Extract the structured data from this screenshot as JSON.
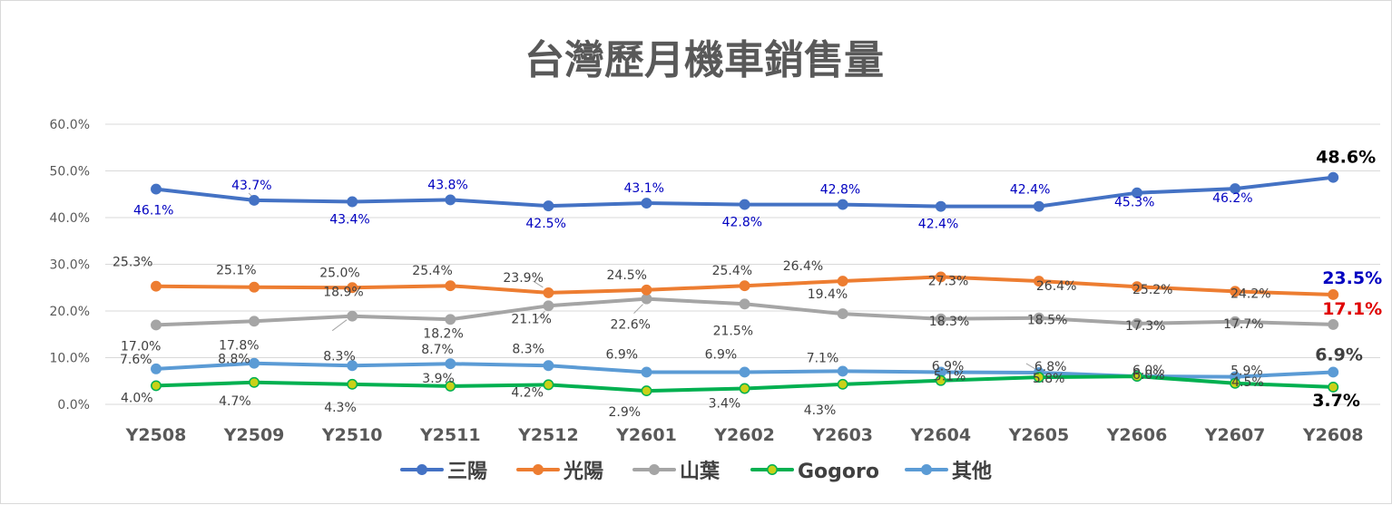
{
  "chart_data": {
    "type": "line",
    "title": "台灣歷月機車銷售量",
    "categories": [
      "Y2508",
      "Y2509",
      "Y2510",
      "Y2511",
      "Y2512",
      "Y2601",
      "Y2602",
      "Y2603",
      "Y2604",
      "Y2605",
      "Y2606",
      "Y2607",
      "Y2608"
    ],
    "ylim": [
      0,
      60
    ],
    "y_ticks": [
      "0.0%",
      "10.0%",
      "20.0%",
      "30.0%",
      "40.0%",
      "50.0%",
      "60.0%"
    ],
    "grid": true,
    "legend_position": "bottom",
    "series": [
      {
        "name": "三陽",
        "color": "#4472c4",
        "values": [
          46.1,
          43.7,
          43.4,
          43.8,
          42.5,
          43.1,
          42.8,
          42.8,
          42.4,
          42.4,
          45.3,
          46.2,
          48.6
        ],
        "labels": [
          "46.1%",
          "43.7%",
          "43.4%",
          "43.8%",
          "42.5%",
          "43.1%",
          "42.8%",
          "42.8%",
          "42.4%",
          "42.4%",
          "45.3%",
          "46.2%",
          "48.6%"
        ],
        "label_color": "#0000c0",
        "last_label_color": "#000000"
      },
      {
        "name": "光陽",
        "color": "#ed7d31",
        "values": [
          25.3,
          25.1,
          25.0,
          25.4,
          23.9,
          24.5,
          25.4,
          26.4,
          27.3,
          26.4,
          25.2,
          24.2,
          23.5
        ],
        "labels": [
          "25.3%",
          "25.1%",
          "25.0%",
          "25.4%",
          "23.9%",
          "24.5%",
          "25.4%",
          "26.4%",
          "27.3%",
          "26.4%",
          "25.2%",
          "24.2%",
          "23.5%"
        ],
        "label_color": "#404040",
        "last_label_color": "#0000c0"
      },
      {
        "name": "山葉",
        "color": "#a5a5a5",
        "values": [
          17.0,
          17.8,
          18.9,
          18.2,
          21.1,
          22.6,
          21.5,
          19.4,
          18.3,
          18.5,
          17.3,
          17.7,
          17.1
        ],
        "labels": [
          "17.0%",
          "17.8%",
          "18.9%",
          "18.2%",
          "21.1%",
          "22.6%",
          "21.5%",
          "19.4%",
          "18.3%",
          "18.5%",
          "17.3%",
          "17.7%",
          "17.1%"
        ],
        "label_color": "#404040",
        "last_label_color": "#e00000"
      },
      {
        "name": "Gogoro",
        "color": "#00b050",
        "marker_fill": "#c9d118",
        "values": [
          4.0,
          4.7,
          4.3,
          3.9,
          4.2,
          2.9,
          3.4,
          4.3,
          5.1,
          5.8,
          6.0,
          4.5,
          3.7
        ],
        "labels": [
          "4.0%",
          "4.7%",
          "4.3%",
          "3.9%",
          "4.2%",
          "2.9%",
          "3.4%",
          "4.3%",
          "5.1%",
          "5.8%",
          "6.0%",
          "4.5%",
          "3.7%"
        ],
        "label_color": "#404040",
        "last_label_color": "#000000"
      },
      {
        "name": "其他",
        "color": "#5b9bd5",
        "values": [
          7.6,
          8.8,
          8.3,
          8.7,
          8.3,
          6.9,
          6.9,
          7.1,
          6.9,
          6.8,
          6.0,
          5.9,
          6.9
        ],
        "labels": [
          "7.6%",
          "8.8%",
          "8.3%",
          "8.7%",
          "8.3%",
          "6.9%",
          "6.9%",
          "7.1%",
          "6.9%",
          "6.8%",
          "6.0%",
          "5.9%",
          "6.9%"
        ],
        "label_color": "#404040",
        "last_label_color": "#404040"
      }
    ]
  }
}
